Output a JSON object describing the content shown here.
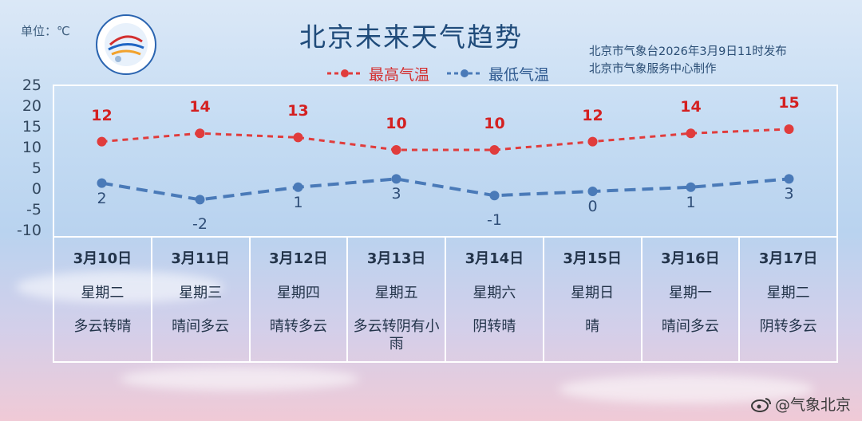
{
  "header": {
    "unit_label": "单位：℃",
    "title": "北京未来天气趋势",
    "issuer_line1": "北京市气象台2026年3月9日11时发布",
    "issuer_line2": "北京市气象服务中心制作"
  },
  "colors": {
    "high": "#e03c3c",
    "low": "#4a7ab8",
    "title": "#1f4b7a"
  },
  "watermark": {
    "text": "@气象北京",
    "icon": "weibo-icon"
  },
  "chart_data": {
    "type": "line",
    "title": "北京未来天气趋势",
    "ylabel": "单位：℃",
    "ylim": [
      -10,
      25
    ],
    "yticks": [
      25,
      20,
      15,
      10,
      5,
      0,
      -5,
      -10
    ],
    "legend": "top-center",
    "grid": false,
    "categories": [
      "3月10日",
      "3月11日",
      "3月12日",
      "3月13日",
      "3月14日",
      "3月15日",
      "3月16日",
      "3月17日"
    ],
    "series": [
      {
        "name": "最高气温",
        "style": "dashed",
        "color": "#e03c3c",
        "values": [
          12,
          14,
          13,
          10,
          10,
          12,
          14,
          15
        ]
      },
      {
        "name": "最低气温",
        "style": "dashed",
        "color": "#4a7ab8",
        "values": [
          2,
          -2,
          1,
          3,
          -1,
          0,
          1,
          3
        ]
      }
    ]
  },
  "days": [
    {
      "date": "3月10日",
      "weekday": "星期二",
      "weather": "多云转晴"
    },
    {
      "date": "3月11日",
      "weekday": "星期三",
      "weather": "晴间多云"
    },
    {
      "date": "3月12日",
      "weekday": "星期四",
      "weather": "晴转多云"
    },
    {
      "date": "3月13日",
      "weekday": "星期五",
      "weather": "多云转阴有小雨"
    },
    {
      "date": "3月14日",
      "weekday": "星期六",
      "weather": "阴转晴"
    },
    {
      "date": "3月15日",
      "weekday": "星期日",
      "weather": "晴"
    },
    {
      "date": "3月16日",
      "weekday": "星期一",
      "weather": "晴间多云"
    },
    {
      "date": "3月17日",
      "weekday": "星期二",
      "weather": "阴转多云"
    }
  ]
}
